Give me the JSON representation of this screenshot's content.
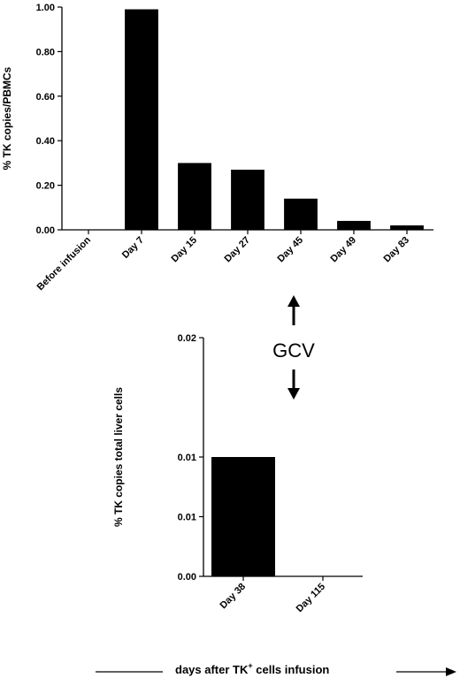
{
  "chart_data": [
    {
      "type": "bar",
      "title": "",
      "ylabel": "% TK copies/PBMCs",
      "xlabel": "",
      "categories": [
        "Before infusion",
        "Day 7",
        "Day 15",
        "Day 27",
        "Day 45",
        "Day 49",
        "Day 83"
      ],
      "values": [
        0.0,
        0.99,
        0.3,
        0.27,
        0.14,
        0.04,
        0.02
      ],
      "ylim": [
        0,
        1.0
      ],
      "yticks": [
        "0.00",
        "0.20",
        "0.40",
        "0.60",
        "0.80",
        "1.00"
      ],
      "ytick_values": [
        0,
        0.2,
        0.4,
        0.6,
        0.8,
        1.0
      ],
      "bar_color": "#000000",
      "grid": false
    },
    {
      "type": "bar",
      "title": "",
      "ylabel": "% TK copies total liver cells",
      "xlabel": "",
      "categories": [
        "Day 38",
        "Day 115"
      ],
      "values": [
        0.01,
        0.0
      ],
      "ylim": [
        0,
        0.02
      ],
      "yticks": [
        "0.00",
        "0.01",
        "0.01",
        "0.02"
      ],
      "ytick_values": [
        0,
        0.005,
        0.01,
        0.02
      ],
      "bar_color": "#000000",
      "grid": false
    }
  ],
  "annotation": {
    "label": "GCV"
  },
  "footer": {
    "text_before": "days after TK",
    "superscript": "+",
    "text_after": " cells infusion"
  }
}
